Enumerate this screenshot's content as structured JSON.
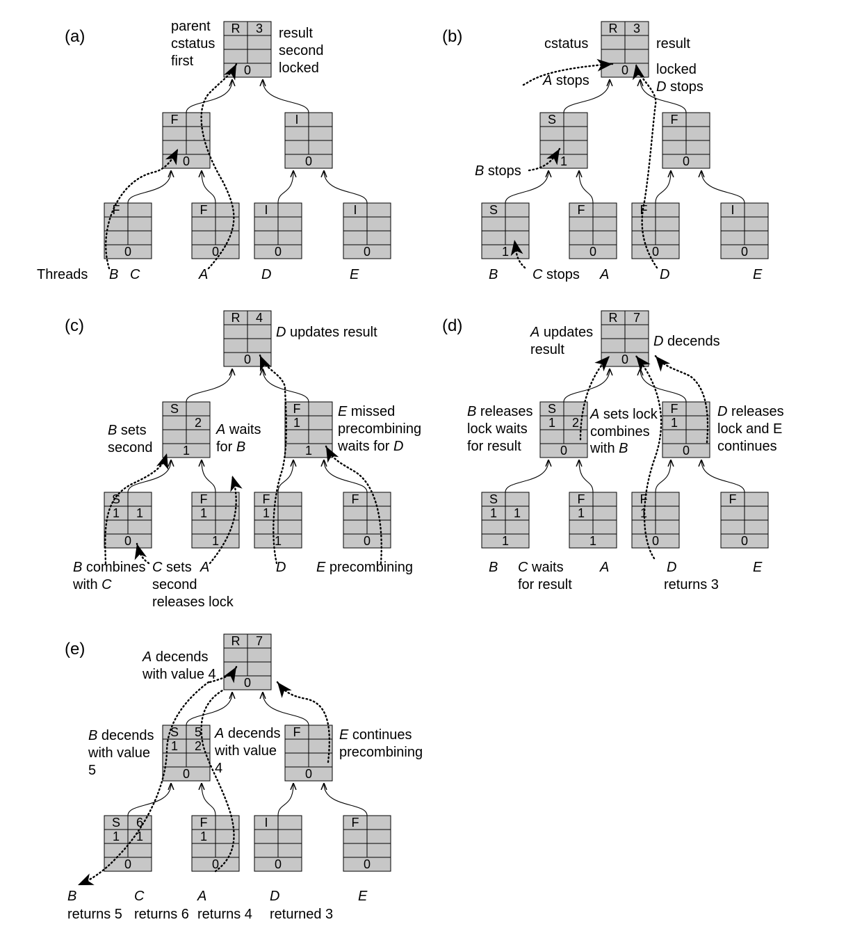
{
  "panels": [
    {
      "id": "a",
      "tag": "(a)",
      "nodes": [
        {
          "c": [
            "R",
            "3",
            "",
            "",
            "",
            "0"
          ]
        },
        {
          "c": [
            "F",
            "",
            "",
            "",
            "",
            "0"
          ]
        },
        {
          "c": [
            "I",
            "",
            "",
            "",
            "",
            "0"
          ]
        },
        {
          "c": [
            "F",
            "",
            "",
            "",
            "",
            "0"
          ]
        },
        {
          "c": [
            "F",
            "",
            "",
            "",
            "",
            "0"
          ]
        },
        {
          "c": [
            "I",
            "",
            "",
            "",
            "",
            "0"
          ]
        },
        {
          "c": [
            "I",
            "",
            "",
            "",
            "",
            "0"
          ]
        }
      ],
      "texts": [
        "parent",
        "cstatus",
        "first",
        "result",
        "second",
        "locked",
        "Threads",
        "B",
        "C",
        "A",
        "D",
        "E"
      ]
    },
    {
      "id": "b",
      "tag": "(b)",
      "nodes": [
        {
          "c": [
            "R",
            "3",
            "",
            "",
            "",
            "0"
          ]
        },
        {
          "c": [
            "S",
            "",
            "",
            "",
            "",
            "1"
          ]
        },
        {
          "c": [
            "F",
            "",
            "",
            "",
            "",
            "0"
          ]
        },
        {
          "c": [
            "S",
            "",
            "",
            "",
            "",
            "1"
          ]
        },
        {
          "c": [
            "F",
            "",
            "",
            "",
            "",
            "0"
          ]
        },
        {
          "c": [
            "F",
            "",
            "",
            "",
            "",
            "0"
          ]
        },
        {
          "c": [
            "I",
            "",
            "",
            "",
            "",
            "0"
          ]
        }
      ],
      "texts": [
        "cstatus",
        "result",
        "A stops",
        "locked",
        "D stops",
        "B stops",
        "B",
        "C stops",
        "A",
        "D",
        "E"
      ]
    },
    {
      "id": "c",
      "tag": "(c)",
      "nodes": [
        {
          "c": [
            "R",
            "4",
            "",
            "",
            "",
            "0"
          ]
        },
        {
          "c": [
            "S",
            "",
            "",
            "2",
            "",
            "1"
          ]
        },
        {
          "c": [
            "F",
            "",
            "1",
            "",
            "",
            "1"
          ]
        },
        {
          "c": [
            "S",
            "",
            "1",
            "1",
            "",
            "0"
          ]
        },
        {
          "c": [
            "F",
            "",
            "1",
            "",
            "",
            "1"
          ]
        },
        {
          "c": [
            "F",
            "",
            "1",
            "",
            "",
            "1"
          ]
        },
        {
          "c": [
            "F",
            "",
            "",
            "",
            "",
            "0"
          ]
        }
      ],
      "texts": [
        "D updates result",
        "B sets",
        "second",
        "A waits",
        "for B",
        "E missed",
        "precombining",
        "waits for D",
        "B combines",
        "with C",
        "C sets",
        "second",
        "releases lock",
        "A",
        "D",
        "E precombining"
      ]
    },
    {
      "id": "d",
      "tag": "(d)",
      "nodes": [
        {
          "c": [
            "R",
            "7",
            "",
            "",
            "",
            "0"
          ]
        },
        {
          "c": [
            "S",
            "",
            "1",
            "2",
            "",
            "0"
          ]
        },
        {
          "c": [
            "F",
            "",
            "1",
            "",
            "",
            "0"
          ]
        },
        {
          "c": [
            "S",
            "",
            "1",
            "1",
            "",
            "1"
          ]
        },
        {
          "c": [
            "F",
            "",
            "1",
            "",
            "",
            "1"
          ]
        },
        {
          "c": [
            "F",
            "",
            "1",
            "",
            "",
            "0"
          ]
        },
        {
          "c": [
            "F",
            "",
            "",
            "",
            "",
            "0"
          ]
        }
      ],
      "texts": [
        "A updates",
        "result",
        "D decends",
        "B releases",
        "lock waits",
        "for result",
        "A sets lock",
        "combines",
        "with B",
        "D releases",
        "lock and E",
        "continues",
        "B",
        "C waits",
        "for result",
        "A",
        "D",
        "returns  3",
        "E"
      ]
    },
    {
      "id": "e",
      "tag": "(e)",
      "nodes": [
        {
          "c": [
            "R",
            "7",
            "",
            "",
            "",
            "0"
          ]
        },
        {
          "c": [
            "S",
            "5",
            "1",
            "2",
            "",
            "0"
          ]
        },
        {
          "c": [
            "F",
            "",
            "",
            "",
            "",
            "0"
          ]
        },
        {
          "c": [
            "S",
            "6",
            "1",
            "1",
            "",
            "0"
          ]
        },
        {
          "c": [
            "F",
            "",
            "1",
            "",
            "",
            "0"
          ]
        },
        {
          "c": [
            "I",
            "",
            "",
            "",
            "",
            "0"
          ]
        },
        {
          "c": [
            "F",
            "",
            "",
            "",
            "",
            "0"
          ]
        }
      ],
      "texts": [
        "A decends",
        "with value 4",
        "B decends",
        "with value",
        "5",
        "A decends",
        "with value",
        "4",
        "E continues",
        "precombining",
        "B",
        "C",
        "A",
        "D",
        "E",
        "returns 5",
        "returns 6",
        "returns 4",
        "returned  3"
      ]
    }
  ]
}
